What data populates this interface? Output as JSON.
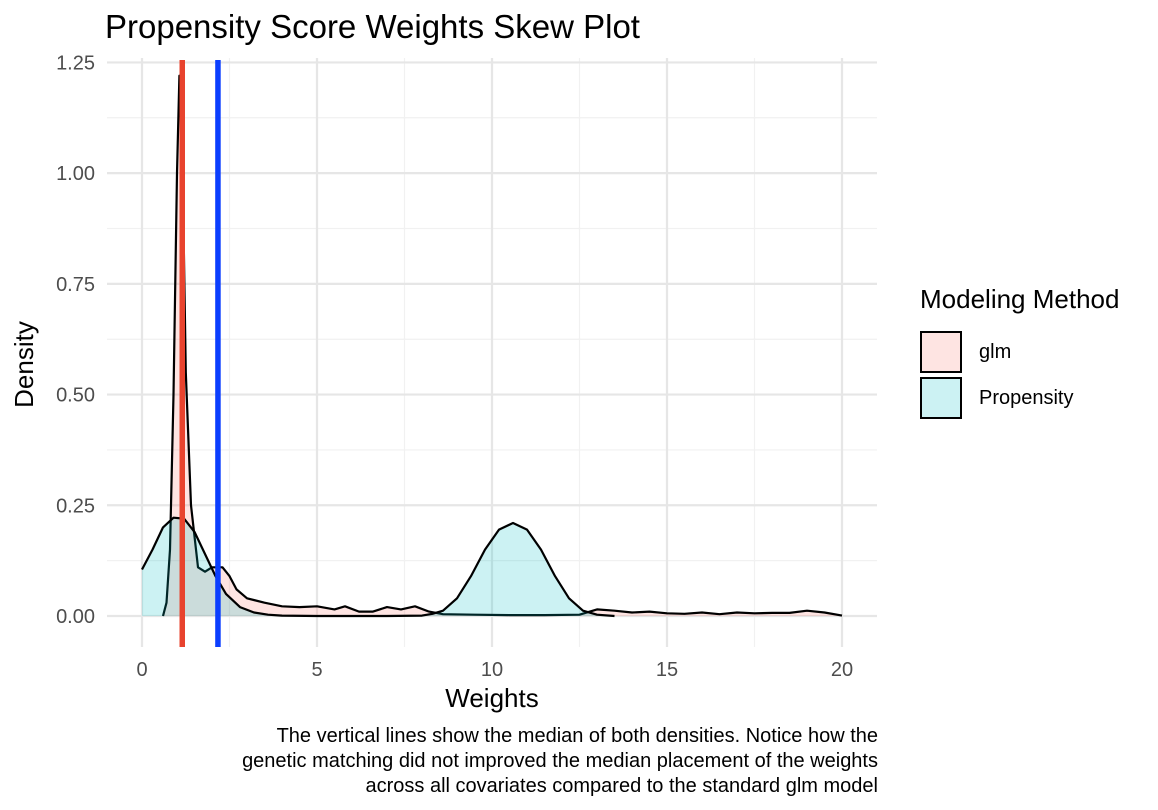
{
  "chart_data": {
    "type": "area",
    "title": "Propensity Score Weights Skew Plot",
    "xlabel": "Weights",
    "ylabel": "Density",
    "xlim": [
      -1,
      21
    ],
    "ylim": [
      -0.07,
      1.26
    ],
    "x_ticks": [
      0,
      5,
      10,
      15,
      20
    ],
    "x_tick_labels": [
      "0",
      "5",
      "10",
      "15",
      "20"
    ],
    "y_ticks": [
      0,
      0.25,
      0.5,
      0.75,
      1.0,
      1.25
    ],
    "y_tick_labels": [
      "0.00",
      "0.25",
      "0.50",
      "0.75",
      "1.00",
      "1.25"
    ],
    "grid": true,
    "legend_position": "right",
    "legend_title": "Modeling Method",
    "series": [
      {
        "name": "glm",
        "fill": "#F8766D",
        "points": [
          [
            0.6,
            0
          ],
          [
            0.7,
            0.03
          ],
          [
            0.8,
            0.15
          ],
          [
            0.9,
            0.5
          ],
          [
            1.0,
            1.0
          ],
          [
            1.07,
            1.22
          ],
          [
            1.15,
            1.05
          ],
          [
            1.25,
            0.55
          ],
          [
            1.4,
            0.25
          ],
          [
            1.6,
            0.11
          ],
          [
            1.8,
            0.1
          ],
          [
            2.0,
            0.11
          ],
          [
            2.3,
            0.11
          ],
          [
            2.5,
            0.09
          ],
          [
            2.7,
            0.06
          ],
          [
            3.0,
            0.04
          ],
          [
            3.5,
            0.03
          ],
          [
            4.0,
            0.022
          ],
          [
            4.5,
            0.02
          ],
          [
            5.0,
            0.022
          ],
          [
            5.5,
            0.015
          ],
          [
            5.8,
            0.022
          ],
          [
            6.2,
            0.01
          ],
          [
            6.6,
            0.01
          ],
          [
            7.0,
            0.02
          ],
          [
            7.4,
            0.015
          ],
          [
            7.8,
            0.022
          ],
          [
            8.2,
            0.01
          ],
          [
            8.6,
            0.004
          ],
          [
            9.5,
            0.003
          ],
          [
            10.5,
            0.002
          ],
          [
            11.5,
            0.002
          ],
          [
            12.5,
            0.003
          ],
          [
            13.0,
            0.015
          ],
          [
            13.5,
            0.012
          ],
          [
            14.0,
            0.008
          ],
          [
            14.5,
            0.01
          ],
          [
            15.0,
            0.006
          ],
          [
            15.5,
            0.005
          ],
          [
            16.0,
            0.008
          ],
          [
            16.5,
            0.004
          ],
          [
            17.0,
            0.008
          ],
          [
            17.5,
            0.006
          ],
          [
            18.0,
            0.007
          ],
          [
            18.5,
            0.007
          ],
          [
            19.0,
            0.012
          ],
          [
            19.5,
            0.008
          ],
          [
            20.0,
            0.001
          ]
        ]
      },
      {
        "name": "Propensity",
        "fill": "#00BFC4",
        "points": [
          [
            0.0,
            0.105
          ],
          [
            0.3,
            0.15
          ],
          [
            0.6,
            0.2
          ],
          [
            0.9,
            0.222
          ],
          [
            1.2,
            0.22
          ],
          [
            1.5,
            0.19
          ],
          [
            1.8,
            0.14
          ],
          [
            2.1,
            0.09
          ],
          [
            2.4,
            0.05
          ],
          [
            2.8,
            0.02
          ],
          [
            3.2,
            0.008
          ],
          [
            3.6,
            0.003
          ],
          [
            4.0,
            0.001
          ],
          [
            5.0,
            0.0
          ],
          [
            7.0,
            0.0
          ],
          [
            8.0,
            0.001
          ],
          [
            8.3,
            0.005
          ],
          [
            8.6,
            0.012
          ],
          [
            9.0,
            0.04
          ],
          [
            9.4,
            0.09
          ],
          [
            9.8,
            0.15
          ],
          [
            10.2,
            0.195
          ],
          [
            10.6,
            0.21
          ],
          [
            11.0,
            0.195
          ],
          [
            11.4,
            0.15
          ],
          [
            11.8,
            0.09
          ],
          [
            12.2,
            0.04
          ],
          [
            12.6,
            0.012
          ],
          [
            13.0,
            0.003
          ],
          [
            13.5,
            0.0
          ]
        ]
      }
    ],
    "vertical_lines": [
      {
        "series": "glm",
        "x": 1.15,
        "color": "#E8432E"
      },
      {
        "series": "Propensity",
        "x": 2.17,
        "color": "#0B3EFF"
      }
    ]
  },
  "caption": {
    "lines": [
      "The vertical lines show the median of both densities. Notice how the",
      "genetic matching did not improved the median placement of the weights",
      "across all covariates compared to the standard glm model"
    ]
  }
}
